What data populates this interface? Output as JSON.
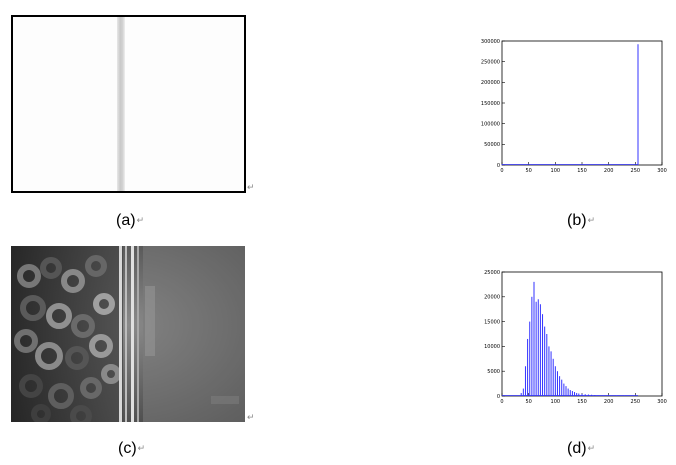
{
  "captions": {
    "a": "(a)",
    "b": "(b)",
    "c": "(c)",
    "d": "(d)",
    "mark": "↵"
  },
  "chart_data": [
    {
      "type": "bar",
      "panel": "b",
      "title": "",
      "xlabel": "",
      "ylabel": "",
      "xlim": [
        0,
        300
      ],
      "ylim": [
        0,
        300000
      ],
      "x_ticks": [
        0,
        50,
        100,
        150,
        200,
        250,
        300
      ],
      "y_ticks": [
        0,
        50000,
        100000,
        150000,
        200000,
        250000,
        300000
      ],
      "x": [
        0,
        255
      ],
      "values": [
        1500,
        292000
      ],
      "series_color": "#3333ff",
      "grid": false
    },
    {
      "type": "bar",
      "panel": "d",
      "title": "",
      "xlabel": "",
      "ylabel": "",
      "xlim": [
        0,
        300
      ],
      "ylim": [
        0,
        25000
      ],
      "x_ticks": [
        0,
        50,
        100,
        150,
        200,
        250,
        300
      ],
      "y_ticks": [
        0,
        5000,
        10000,
        15000,
        20000,
        25000
      ],
      "x": [
        36,
        40,
        44,
        48,
        52,
        56,
        60,
        64,
        68,
        72,
        76,
        80,
        84,
        88,
        92,
        96,
        100,
        104,
        108,
        112,
        116,
        120,
        124,
        128,
        132,
        136,
        140,
        144,
        150,
        156,
        162,
        168,
        174,
        180,
        190,
        200,
        215,
        230,
        250
      ],
      "values": [
        600,
        1500,
        6000,
        11500,
        15000,
        20000,
        23000,
        19000,
        19500,
        18500,
        16500,
        14000,
        12500,
        10000,
        9000,
        7500,
        6000,
        5000,
        4000,
        3300,
        2500,
        2000,
        1500,
        1200,
        1000,
        800,
        600,
        500,
        400,
        350,
        300,
        250,
        200,
        150,
        120,
        100,
        80,
        60,
        40
      ],
      "series_color": "#3333ff",
      "grid": false
    }
  ]
}
